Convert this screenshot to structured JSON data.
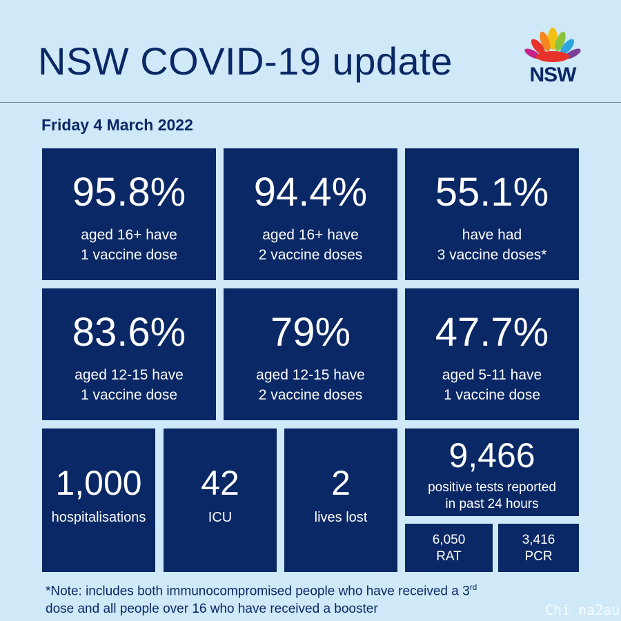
{
  "header": {
    "title": "NSW COVID-19 update",
    "logo_text": "NSW",
    "colors": {
      "navy": "#0a2865",
      "background": "#cfe9f8"
    }
  },
  "date": "Friday 4 March 2022",
  "vaccination": [
    {
      "value": "95.8%",
      "line1": "aged 16+ have",
      "line2": "1 vaccine dose"
    },
    {
      "value": "94.4%",
      "line1": "aged 16+ have",
      "line2": "2 vaccine doses"
    },
    {
      "value": "55.1%",
      "line1": "have had",
      "line2": "3 vaccine doses*"
    },
    {
      "value": "83.6%",
      "line1": "aged 12-15 have",
      "line2": "1 vaccine dose"
    },
    {
      "value": "79%",
      "line1": "aged 12-15 have",
      "line2": "2 vaccine doses"
    },
    {
      "value": "47.7%",
      "line1": "aged 5-11 have",
      "line2": "1 vaccine dose"
    }
  ],
  "hospital": {
    "hospitalisations": {
      "value": "1,000",
      "label": "hospitalisations"
    },
    "icu": {
      "value": "42",
      "label": "ICU"
    },
    "deaths": {
      "value": "2",
      "label": "lives lost"
    }
  },
  "tests": {
    "total": "9,466",
    "line1": "positive tests reported",
    "line2": "in past 24 hours",
    "rat": {
      "value": "6,050",
      "label": "RAT"
    },
    "pcr": {
      "value": "3,416",
      "label": "PCR"
    }
  },
  "note": {
    "part1": "*Note: includes both immunocompromised  people who have received a 3",
    "sup": "rd",
    "part2": "dose and all people over 16 who have received a booster"
  },
  "watermark": "Chi na2au"
}
